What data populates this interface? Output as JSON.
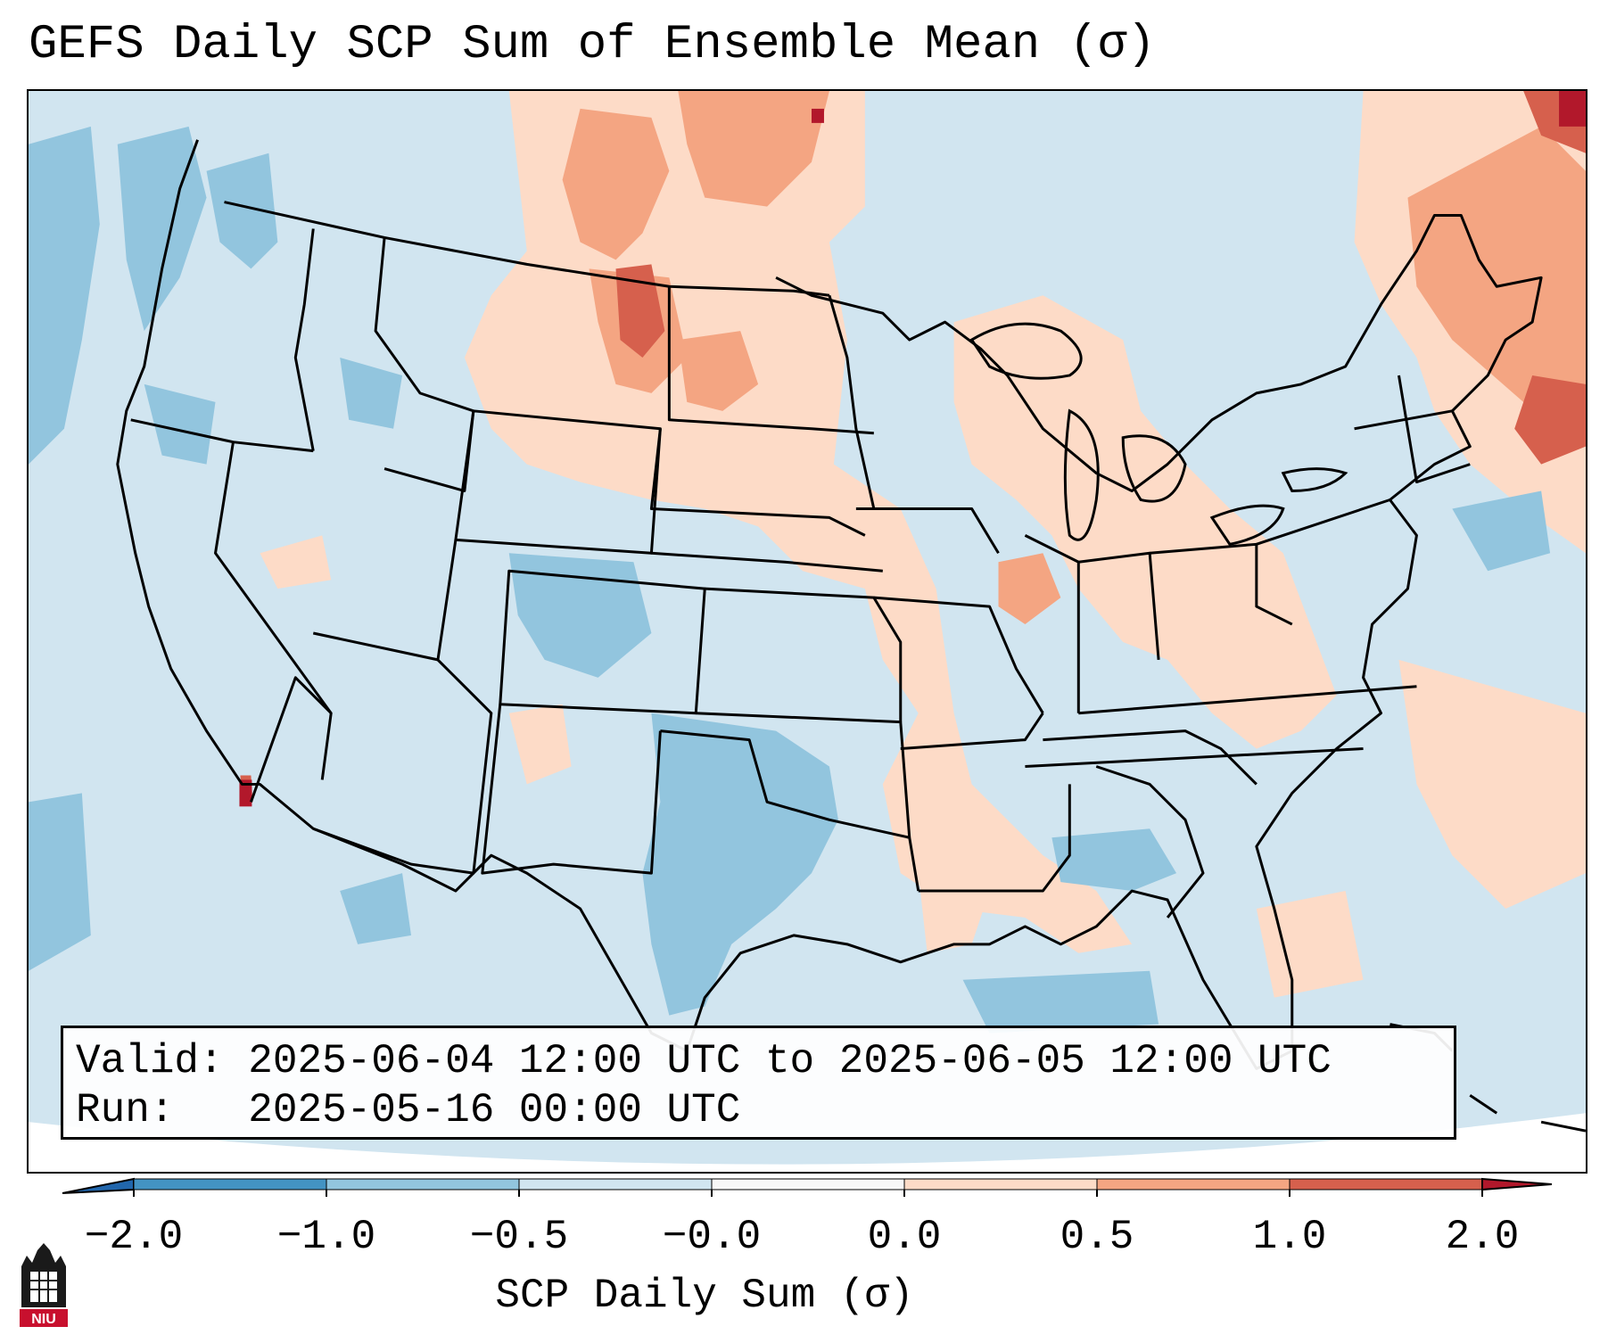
{
  "title": "GEFS Daily SCP Sum of Ensemble Mean (σ)",
  "map": {
    "region": "Continental United States",
    "shading": {
      "below_neg_2": "#2166ac",
      "neg_2_to_neg_1": "#4393c3",
      "neg_1_to_neg_0_5": "#92c5de",
      "neg_0_5_to_0": "#d1e5f0",
      "zero_to_0_5": "#fddbc7",
      "half_to_1": "#f4a582",
      "one_to_2": "#d6604d",
      "above_2": "#b2182b"
    }
  },
  "info_box": {
    "valid_label": "Valid:",
    "valid_value": "2025-06-04 12:00 UTC to 2025-06-05 12:00 UTC",
    "run_label": "Run:",
    "run_value": "2025-05-16 00:00 UTC"
  },
  "colorbar": {
    "ticks": [
      "−2.0",
      "−1.0",
      "−0.5",
      "−0.0",
      "0.0",
      "0.5",
      "1.0",
      "2.0"
    ],
    "label": "SCP Daily Sum (σ)"
  },
  "logo": {
    "text": "NIU",
    "icon": "niu-castle-logo"
  }
}
